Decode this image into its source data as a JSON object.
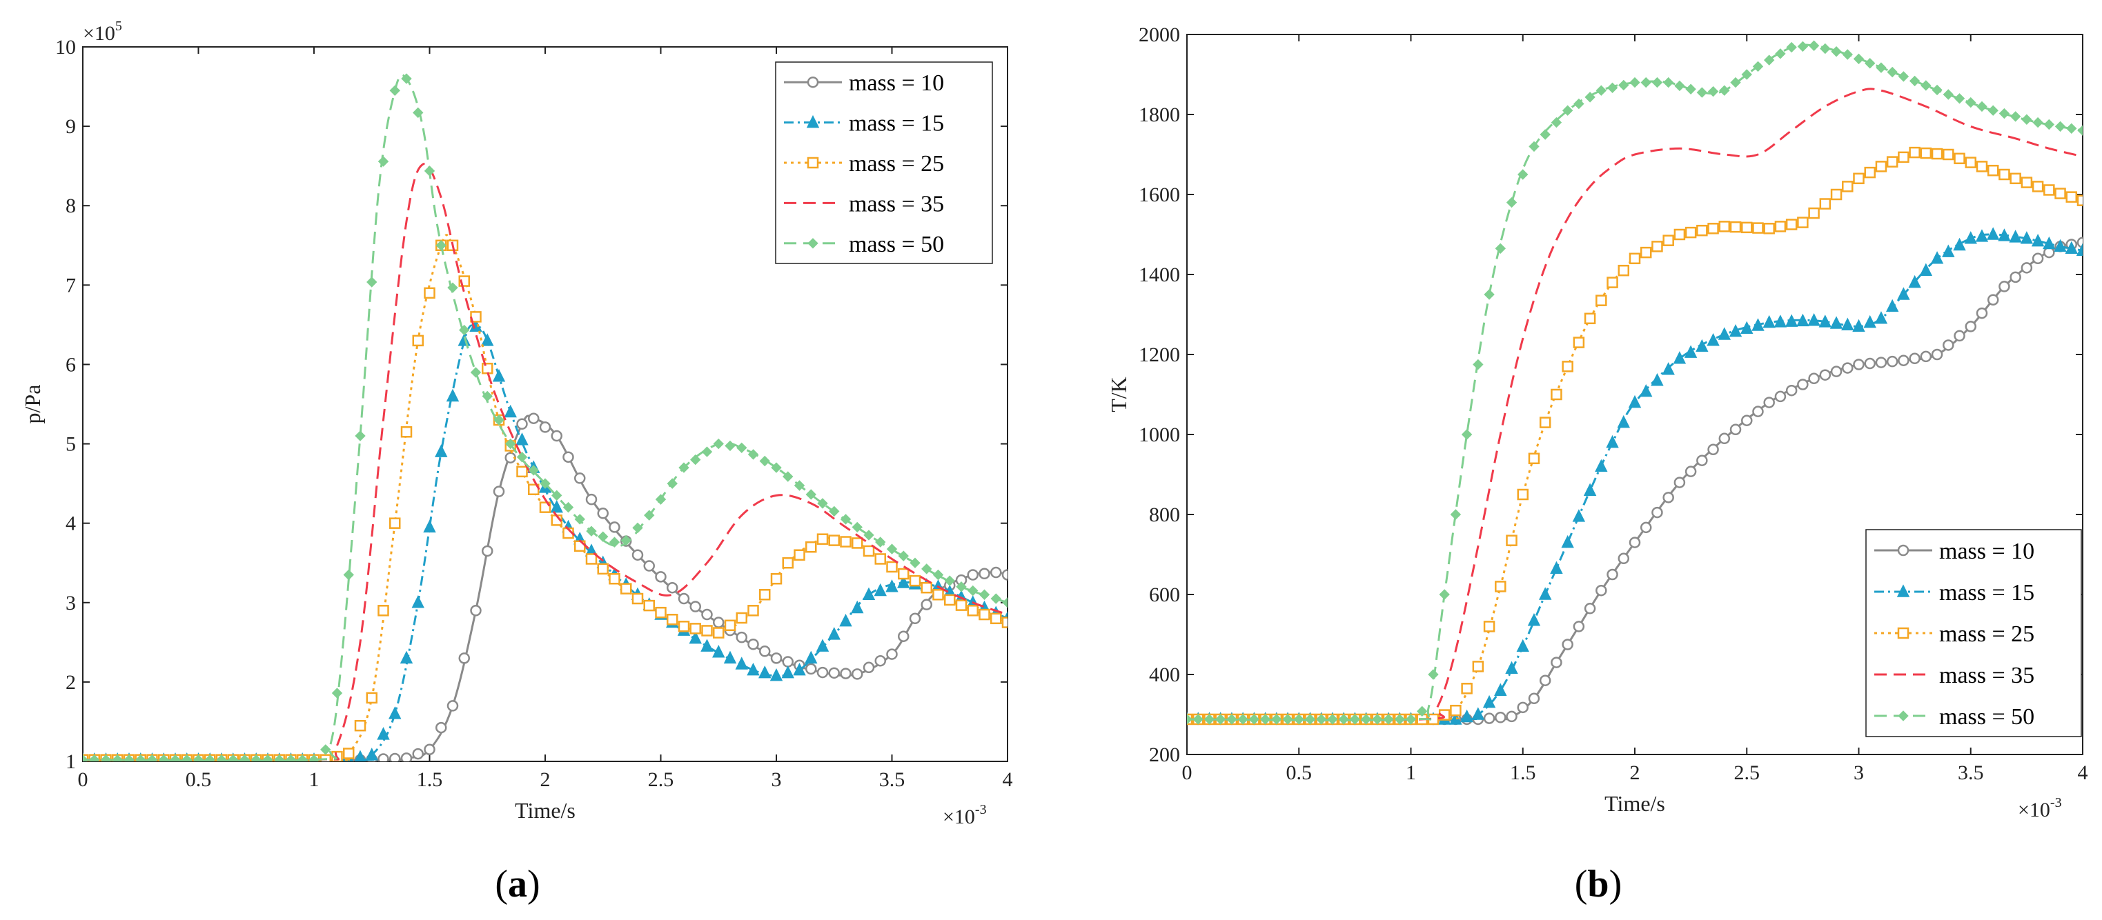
{
  "chart_data": [
    {
      "panel_label": "a",
      "type": "line",
      "xlabel": "Time/s",
      "ylabel": "p/Pa",
      "x_multiplier": {
        "base": "×10",
        "exp": "-3"
      },
      "y_multiplier": {
        "base": "×10",
        "exp": "5"
      },
      "xlim": [
        0,
        4
      ],
      "ylim": [
        1,
        10
      ],
      "xticks": [
        0,
        0.5,
        1,
        1.5,
        2,
        2.5,
        3,
        3.5,
        4
      ],
      "xtick_labels": [
        "0",
        "0.5",
        "1",
        "1.5",
        "2",
        "2.5",
        "3",
        "3.5",
        "4"
      ],
      "yticks": [
        1,
        2,
        3,
        4,
        5,
        6,
        7,
        8,
        9,
        10
      ],
      "ytick_labels": [
        "1",
        "2",
        "3",
        "4",
        "5",
        "6",
        "7",
        "8",
        "9",
        "10"
      ],
      "legend_position": "top-right",
      "series": [
        {
          "name": "mass = 10",
          "color": "#8a8a8a",
          "dash": "",
          "marker": "circle",
          "points": [
            [
              0,
              1.02
            ],
            [
              1.2,
              1.02
            ],
            [
              1.4,
              1.04
            ],
            [
              1.5,
              1.15
            ],
            [
              1.6,
              1.7
            ],
            [
              1.7,
              2.9
            ],
            [
              1.8,
              4.4
            ],
            [
              1.9,
              5.25
            ],
            [
              1.95,
              5.32
            ],
            [
              2.05,
              5.1
            ],
            [
              2.2,
              4.3
            ],
            [
              2.4,
              3.6
            ],
            [
              2.6,
              3.05
            ],
            [
              2.8,
              2.65
            ],
            [
              3.0,
              2.3
            ],
            [
              3.2,
              2.12
            ],
            [
              3.35,
              2.1
            ],
            [
              3.5,
              2.35
            ],
            [
              3.6,
              2.8
            ],
            [
              3.7,
              3.15
            ],
            [
              3.85,
              3.35
            ],
            [
              3.95,
              3.38
            ],
            [
              4.0,
              3.35
            ]
          ]
        },
        {
          "name": "mass = 15",
          "color": "#1f9fc9",
          "dash": "14 6 3 6",
          "marker": "triangle",
          "points": [
            [
              0,
              1.02
            ],
            [
              1.15,
              1.02
            ],
            [
              1.25,
              1.08
            ],
            [
              1.35,
              1.6
            ],
            [
              1.45,
              3.0
            ],
            [
              1.55,
              4.9
            ],
            [
              1.65,
              6.3
            ],
            [
              1.7,
              6.48
            ],
            [
              1.75,
              6.3
            ],
            [
              1.85,
              5.4
            ],
            [
              1.95,
              4.7
            ],
            [
              2.1,
              3.95
            ],
            [
              2.3,
              3.35
            ],
            [
              2.5,
              2.85
            ],
            [
              2.7,
              2.45
            ],
            [
              2.9,
              2.15
            ],
            [
              3.0,
              2.08
            ],
            [
              3.1,
              2.15
            ],
            [
              3.25,
              2.6
            ],
            [
              3.4,
              3.1
            ],
            [
              3.55,
              3.25
            ],
            [
              3.7,
              3.2
            ],
            [
              3.85,
              3.0
            ],
            [
              4.0,
              2.8
            ]
          ]
        },
        {
          "name": "mass = 25",
          "color": "#f5a623",
          "dash": "4 6",
          "marker": "square",
          "points": [
            [
              0,
              1.02
            ],
            [
              1.05,
              1.02
            ],
            [
              1.15,
              1.1
            ],
            [
              1.25,
              1.8
            ],
            [
              1.35,
              4.0
            ],
            [
              1.45,
              6.3
            ],
            [
              1.55,
              7.5
            ],
            [
              1.6,
              7.5
            ],
            [
              1.7,
              6.6
            ],
            [
              1.8,
              5.3
            ],
            [
              1.9,
              4.65
            ],
            [
              2.0,
              4.2
            ],
            [
              2.2,
              3.55
            ],
            [
              2.4,
              3.05
            ],
            [
              2.6,
              2.7
            ],
            [
              2.75,
              2.62
            ],
            [
              2.9,
              2.9
            ],
            [
              3.05,
              3.5
            ],
            [
              3.2,
              3.8
            ],
            [
              3.35,
              3.75
            ],
            [
              3.5,
              3.45
            ],
            [
              3.7,
              3.1
            ],
            [
              3.85,
              2.9
            ],
            [
              4.0,
              2.75
            ]
          ]
        },
        {
          "name": "mass = 35",
          "color": "#f03a4a",
          "dash": "18 10",
          "marker": "none",
          "points": [
            [
              0,
              1.02
            ],
            [
              1.0,
              1.02
            ],
            [
              1.1,
              1.2
            ],
            [
              1.2,
              2.5
            ],
            [
              1.3,
              5.3
            ],
            [
              1.4,
              7.8
            ],
            [
              1.47,
              8.52
            ],
            [
              1.55,
              8.1
            ],
            [
              1.65,
              6.9
            ],
            [
              1.8,
              5.5
            ],
            [
              2.0,
              4.3
            ],
            [
              2.2,
              3.65
            ],
            [
              2.4,
              3.25
            ],
            [
              2.55,
              3.1
            ],
            [
              2.7,
              3.5
            ],
            [
              2.85,
              4.1
            ],
            [
              3.0,
              4.35
            ],
            [
              3.15,
              4.25
            ],
            [
              3.3,
              3.95
            ],
            [
              3.5,
              3.55
            ],
            [
              3.7,
              3.2
            ],
            [
              3.85,
              3.0
            ],
            [
              4.0,
              2.85
            ]
          ]
        },
        {
          "name": "mass = 50",
          "color": "#7fcf8f",
          "dash": "18 10",
          "marker": "diamond",
          "points": [
            [
              0,
              1.02
            ],
            [
              1.0,
              1.02
            ],
            [
              1.07,
              1.2
            ],
            [
              1.12,
              2.3
            ],
            [
              1.2,
              5.1
            ],
            [
              1.28,
              8.2
            ],
            [
              1.35,
              9.45
            ],
            [
              1.4,
              9.6
            ],
            [
              1.47,
              9.0
            ],
            [
              1.55,
              7.5
            ],
            [
              1.7,
              5.9
            ],
            [
              1.85,
              5.0
            ],
            [
              2.0,
              4.5
            ],
            [
              2.2,
              3.9
            ],
            [
              2.33,
              3.72
            ],
            [
              2.45,
              4.1
            ],
            [
              2.6,
              4.7
            ],
            [
              2.75,
              5.0
            ],
            [
              2.85,
              4.95
            ],
            [
              3.0,
              4.7
            ],
            [
              3.2,
              4.25
            ],
            [
              3.4,
              3.85
            ],
            [
              3.6,
              3.5
            ],
            [
              3.8,
              3.2
            ],
            [
              4.0,
              3.0
            ]
          ]
        }
      ]
    },
    {
      "panel_label": "b",
      "type": "line",
      "xlabel": "Time/s",
      "ylabel": "T/K",
      "x_multiplier": {
        "base": "×10",
        "exp": "-3"
      },
      "xlim": [
        0,
        4
      ],
      "ylim": [
        200,
        2000
      ],
      "xticks": [
        0,
        0.5,
        1,
        1.5,
        2,
        2.5,
        3,
        3.5,
        4
      ],
      "xtick_labels": [
        "0",
        "0.5",
        "1",
        "1.5",
        "2",
        "2.5",
        "3",
        "3.5",
        "4"
      ],
      "yticks": [
        200,
        400,
        600,
        800,
        1000,
        1200,
        1400,
        1600,
        1800,
        2000
      ],
      "ytick_labels": [
        "200",
        "400",
        "600",
        "800",
        "1000",
        "1200",
        "1400",
        "1600",
        "1800",
        "2000"
      ],
      "legend_position": "bottom-right",
      "series": [
        {
          "name": "mass = 10",
          "color": "#8a8a8a",
          "dash": "",
          "marker": "circle",
          "points": [
            [
              0,
              288
            ],
            [
              1.3,
              288
            ],
            [
              1.45,
              295
            ],
            [
              1.55,
              340
            ],
            [
              1.65,
              430
            ],
            [
              1.75,
              520
            ],
            [
              1.85,
              610
            ],
            [
              2.0,
              730
            ],
            [
              2.2,
              880
            ],
            [
              2.4,
              990
            ],
            [
              2.6,
              1080
            ],
            [
              2.8,
              1140
            ],
            [
              3.0,
              1175
            ],
            [
              3.2,
              1185
            ],
            [
              3.35,
              1200
            ],
            [
              3.5,
              1270
            ],
            [
              3.65,
              1370
            ],
            [
              3.8,
              1440
            ],
            [
              3.9,
              1470
            ],
            [
              4.0,
              1480
            ]
          ]
        },
        {
          "name": "mass = 15",
          "color": "#1f9fc9",
          "dash": "14 6 3 6",
          "marker": "triangle",
          "points": [
            [
              0,
              288
            ],
            [
              1.2,
              288
            ],
            [
              1.3,
              300
            ],
            [
              1.4,
              360
            ],
            [
              1.5,
              470
            ],
            [
              1.6,
              600
            ],
            [
              1.7,
              730
            ],
            [
              1.8,
              860
            ],
            [
              1.9,
              980
            ],
            [
              2.0,
              1080
            ],
            [
              2.2,
              1190
            ],
            [
              2.4,
              1250
            ],
            [
              2.6,
              1280
            ],
            [
              2.8,
              1285
            ],
            [
              3.0,
              1270
            ],
            [
              3.1,
              1290
            ],
            [
              3.2,
              1350
            ],
            [
              3.35,
              1440
            ],
            [
              3.5,
              1490
            ],
            [
              3.6,
              1500
            ],
            [
              3.75,
              1490
            ],
            [
              3.9,
              1470
            ],
            [
              4.0,
              1460
            ]
          ]
        },
        {
          "name": "mass = 25",
          "color": "#f5a623",
          "dash": "4 6",
          "marker": "square",
          "points": [
            [
              0,
              288
            ],
            [
              1.1,
              288
            ],
            [
              1.2,
              310
            ],
            [
              1.3,
              420
            ],
            [
              1.4,
              620
            ],
            [
              1.5,
              850
            ],
            [
              1.6,
              1030
            ],
            [
              1.7,
              1170
            ],
            [
              1.8,
              1290
            ],
            [
              1.9,
              1380
            ],
            [
              2.0,
              1440
            ],
            [
              2.2,
              1500
            ],
            [
              2.4,
              1520
            ],
            [
              2.6,
              1515
            ],
            [
              2.75,
              1530
            ],
            [
              2.9,
              1600
            ],
            [
              3.0,
              1640
            ],
            [
              3.1,
              1670
            ],
            [
              3.25,
              1705
            ],
            [
              3.4,
              1700
            ],
            [
              3.6,
              1660
            ],
            [
              3.8,
              1620
            ],
            [
              4.0,
              1585
            ]
          ]
        },
        {
          "name": "mass = 35",
          "color": "#f03a4a",
          "dash": "18 10",
          "marker": "none",
          "points": [
            [
              0,
              288
            ],
            [
              1.05,
              288
            ],
            [
              1.12,
              320
            ],
            [
              1.2,
              460
            ],
            [
              1.3,
              720
            ],
            [
              1.4,
              1000
            ],
            [
              1.5,
              1240
            ],
            [
              1.6,
              1420
            ],
            [
              1.7,
              1540
            ],
            [
              1.8,
              1620
            ],
            [
              1.9,
              1670
            ],
            [
              2.0,
              1700
            ],
            [
              2.2,
              1715
            ],
            [
              2.4,
              1700
            ],
            [
              2.55,
              1700
            ],
            [
              2.7,
              1760
            ],
            [
              2.85,
              1820
            ],
            [
              3.0,
              1858
            ],
            [
              3.1,
              1860
            ],
            [
              3.3,
              1820
            ],
            [
              3.5,
              1770
            ],
            [
              3.7,
              1740
            ],
            [
              3.85,
              1715
            ],
            [
              4.0,
              1695
            ]
          ]
        },
        {
          "name": "mass = 50",
          "color": "#7fcf8f",
          "dash": "18 10",
          "marker": "diamond",
          "points": [
            [
              0,
              288
            ],
            [
              1.0,
              288
            ],
            [
              1.08,
              320
            ],
            [
              1.15,
              600
            ],
            [
              1.25,
              1000
            ],
            [
              1.35,
              1350
            ],
            [
              1.45,
              1580
            ],
            [
              1.55,
              1720
            ],
            [
              1.7,
              1810
            ],
            [
              1.85,
              1860
            ],
            [
              2.0,
              1880
            ],
            [
              2.15,
              1880
            ],
            [
              2.3,
              1855
            ],
            [
              2.4,
              1860
            ],
            [
              2.55,
              1920
            ],
            [
              2.7,
              1968
            ],
            [
              2.8,
              1972
            ],
            [
              2.95,
              1950
            ],
            [
              3.2,
              1895
            ],
            [
              3.4,
              1850
            ],
            [
              3.6,
              1810
            ],
            [
              3.8,
              1780
            ],
            [
              4.0,
              1760
            ]
          ]
        }
      ]
    }
  ]
}
